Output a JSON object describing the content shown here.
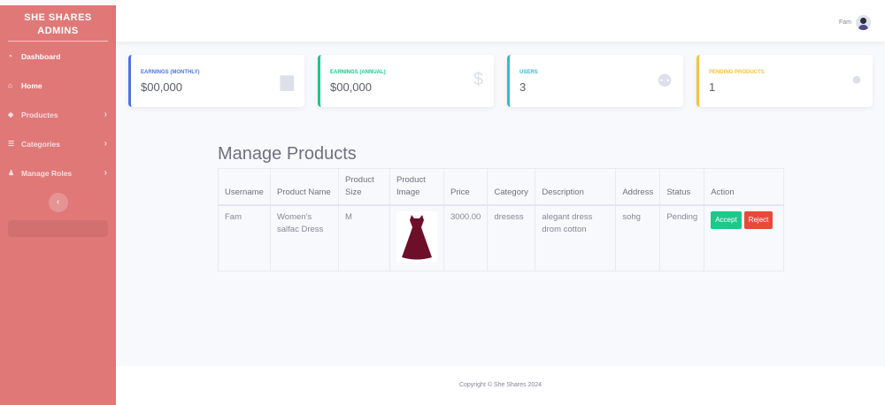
{
  "sidebar": {
    "brand": "SHE SHARES ADMINS",
    "items": [
      {
        "label": "Dashboard",
        "icon": "tachometer-icon",
        "chevron": false
      },
      {
        "label": "Home",
        "icon": "home-icon",
        "chevron": false
      },
      {
        "label": "Productes",
        "icon": "tag-icon",
        "chevron": true
      },
      {
        "label": "Categories",
        "icon": "list-icon",
        "chevron": true
      },
      {
        "label": "Manage Roles",
        "icon": "user-cog-icon",
        "chevron": true
      }
    ]
  },
  "topbar": {
    "username": "Fam"
  },
  "cards": [
    {
      "label": "Earnings (Monthly)",
      "value": "$00,000",
      "icon": "calendar-icon",
      "color": "#4e73df"
    },
    {
      "label": "Earnings (Annual)",
      "value": "$00,000",
      "icon": "dollar-icon",
      "color": "#1cc88a"
    },
    {
      "label": "Users",
      "value": "3",
      "icon": "users-icon",
      "color": "#36b9cc"
    },
    {
      "label": "Pending Products",
      "value": "1",
      "icon": "comments-icon",
      "color": "#f6c23e"
    }
  ],
  "main": {
    "title": "Manage Products",
    "columns": [
      "Username",
      "Product Name",
      "Product Size",
      "Product Image",
      "Price",
      "Category",
      "Description",
      "Address",
      "Status",
      "Action"
    ],
    "rows": [
      {
        "username": "Fam",
        "product_name": "Women's salfac Dress",
        "size": "M",
        "image": "red-dress",
        "price": "3000.00",
        "category": "dresess",
        "description": "alegant dress drom cotton",
        "address": "sohg",
        "status": "Pending",
        "accept": "Accept",
        "reject": "Reject"
      }
    ]
  },
  "footer": {
    "text": "Copyright © She Shares 2024"
  }
}
